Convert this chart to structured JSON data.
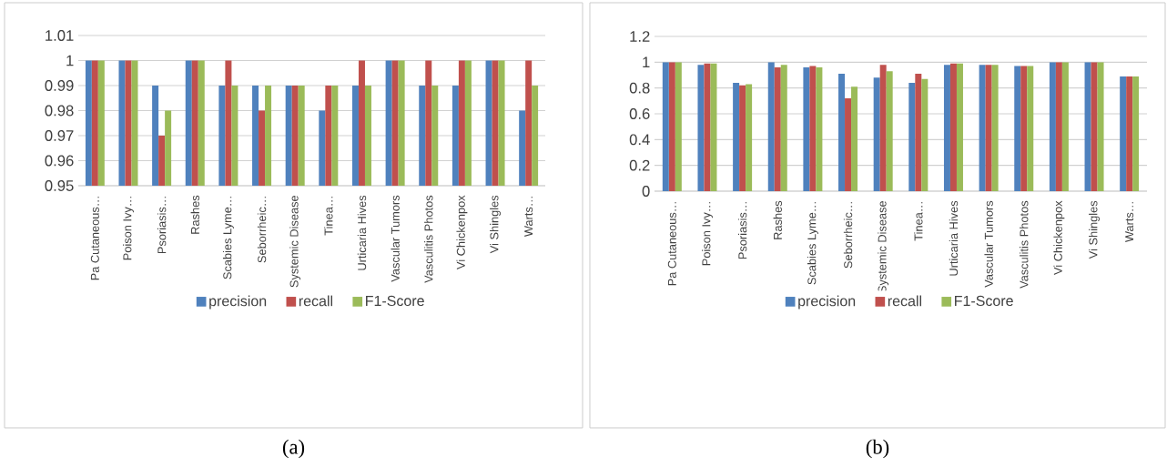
{
  "chart_data": [
    {
      "type": "bar",
      "categories": [
        "Pa Cutaneous…",
        "Poison Ivy…",
        "Psoriasis…",
        "Rashes",
        "Scabies Lyme…",
        "Seborrheic…",
        "Systemic Disease",
        "Tinea…",
        "Urticaria Hives",
        "Vascular Tumors",
        "Vasculitis Photos",
        "Vi Chickenpox",
        "Vi Shingles",
        "Warts…"
      ],
      "series": [
        {
          "name": "precision",
          "color": "#4f81bd",
          "values": [
            1,
            1,
            0.99,
            1,
            0.99,
            0.99,
            0.99,
            0.98,
            0.99,
            1,
            0.99,
            0.99,
            1,
            0.98
          ]
        },
        {
          "name": "recall",
          "color": "#c0504d",
          "values": [
            1,
            1,
            0.97,
            1,
            1,
            0.98,
            0.99,
            0.99,
            1,
            1,
            1,
            1,
            1,
            1
          ]
        },
        {
          "name": "F1-Score",
          "color": "#9bbb59",
          "values": [
            1,
            1,
            0.98,
            1,
            0.99,
            0.99,
            0.99,
            0.99,
            0.99,
            1,
            0.99,
            1,
            1,
            0.99
          ]
        }
      ],
      "ylim": [
        0.95,
        1.01
      ],
      "yticks": [
        0.95,
        0.96,
        0.97,
        0.98,
        0.99,
        1,
        1.01
      ],
      "grid": "y",
      "legend": "bottom",
      "annotations": [
        "(a)"
      ]
    },
    {
      "type": "bar",
      "categories": [
        "Pa Cutaneous…",
        "Poison Ivy…",
        "Psoriasis…",
        "Rashes",
        "Scabies Lyme…",
        "Seborrheic…",
        "Systemic Disease",
        "Tinea…",
        "Urticaria Hives",
        "Vascular Tumors",
        "Vasculitis Photos",
        "Vi Chickenpox",
        "Vi Shingles",
        "Warts…"
      ],
      "series": [
        {
          "name": "precision",
          "color": "#4f81bd",
          "values": [
            1,
            0.98,
            0.84,
            1,
            0.96,
            0.91,
            0.88,
            0.84,
            0.98,
            0.98,
            0.97,
            1,
            1,
            0.89
          ]
        },
        {
          "name": "recall",
          "color": "#c0504d",
          "values": [
            1,
            0.99,
            0.82,
            0.96,
            0.97,
            0.72,
            0.98,
            0.91,
            0.99,
            0.98,
            0.97,
            1,
            1,
            0.89
          ]
        },
        {
          "name": "F1-Score",
          "color": "#9bbb59",
          "values": [
            1,
            0.99,
            0.83,
            0.98,
            0.96,
            0.81,
            0.93,
            0.87,
            0.99,
            0.98,
            0.97,
            1,
            1,
            0.89
          ]
        }
      ],
      "ylim": [
        0,
        1.2
      ],
      "yticks": [
        0,
        0.2,
        0.4,
        0.6,
        0.8,
        1,
        1.2
      ],
      "grid": "y",
      "legend": "bottom",
      "annotations": [
        "(b)"
      ]
    }
  ]
}
